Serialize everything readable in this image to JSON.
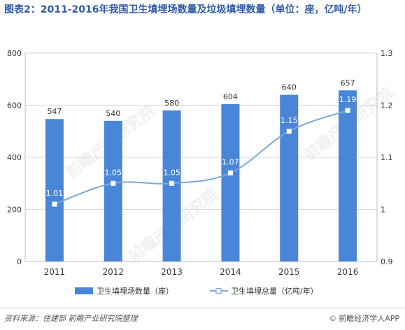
{
  "title": "图表2：2011-2016年我国卫生填埋场数量及垃圾填埋数量（单位：座，亿吨/年）",
  "watermark": "前瞻产业研究院",
  "footer": {
    "source": "资料来源：住建部  前瞻产业研究院整理",
    "brand": "前瞻经济学人APP",
    "brand_icon": "copyright-icon"
  },
  "colors": {
    "bar": "#4a86d8",
    "line": "#7fa6d6",
    "title": "#2f5aa8",
    "grid": "#d9d9d9"
  },
  "chart_data": {
    "type": "bar",
    "title": "图表2：2011-2016年我国卫生填埋场数量及垃圾填埋数量（单位：座，亿吨/年）",
    "categories": [
      "2011",
      "2012",
      "2013",
      "2014",
      "2015",
      "2016"
    ],
    "series": [
      {
        "name": "卫生填埋场数量（座）",
        "type": "bar",
        "axis": "left",
        "values": [
          547,
          540,
          580,
          604,
          640,
          657
        ]
      },
      {
        "name": "卫生填埋总量（亿吨/年）",
        "type": "line",
        "axis": "right",
        "values": [
          1.01,
          1.05,
          1.05,
          1.07,
          1.15,
          1.19
        ]
      }
    ],
    "y_left": {
      "range": [
        0,
        800
      ],
      "ticks": [
        "0",
        "200",
        "400",
        "600",
        "800"
      ]
    },
    "y_right": {
      "range": [
        0.9,
        1.3
      ],
      "ticks": [
        "0.9",
        "1",
        "1.1",
        "1.2",
        "1.3"
      ]
    },
    "grid": true,
    "legend_position": "bottom"
  }
}
